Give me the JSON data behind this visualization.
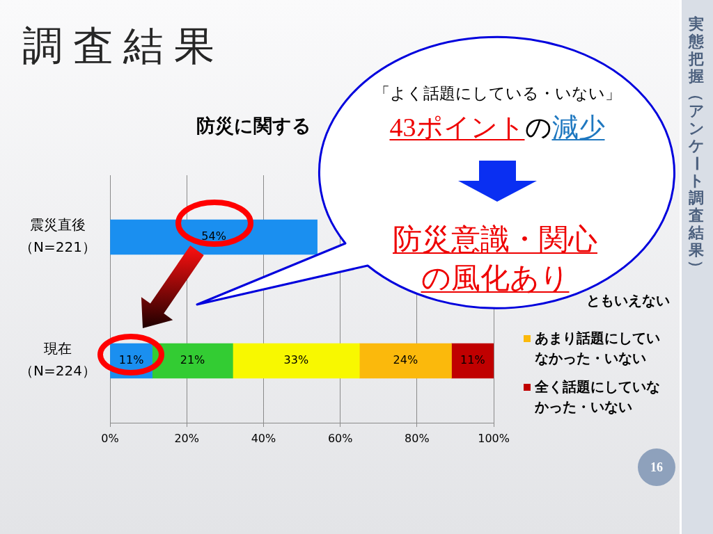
{
  "chart_data": {
    "type": "bar",
    "orientation": "horizontal",
    "stacked": true,
    "title": "調 査 結 果",
    "subtitle": "防災に関する",
    "categories": [
      "震災直後（N=221）",
      "現在（N=224）"
    ],
    "series": [
      {
        "color": "#1a8ff0",
        "values": [
          54,
          11
        ],
        "value_labels": [
          "54%",
          "11%"
        ]
      },
      {
        "color": "#33cc33",
        "values": [
          null,
          21
        ],
        "value_labels": [
          null,
          "21%"
        ]
      },
      {
        "color": "#f8f800",
        "values": [
          null,
          33
        ],
        "value_labels": [
          null,
          "33%"
        ]
      },
      {
        "name": "あまり話題にしていなかった・いない",
        "color": "#fbb90c",
        "values": [
          null,
          24
        ],
        "value_labels": [
          null,
          "24%"
        ]
      },
      {
        "name": "全く話題にしていなかった・いない",
        "color": "#c00000",
        "values": [
          null,
          11
        ],
        "value_labels": [
          null,
          "11%"
        ]
      }
    ],
    "xlim": [
      0,
      100
    ],
    "xticks": [
      {
        "value": 0,
        "label": "0%"
      },
      {
        "value": 20,
        "label": "20%"
      },
      {
        "value": 40,
        "label": "40%"
      },
      {
        "value": 60,
        "label": "60%"
      },
      {
        "value": 80,
        "label": "80%"
      },
      {
        "value": 100,
        "label": "100%"
      }
    ],
    "grid": "x",
    "legend": "right",
    "annotations": [
      "「よく話題にしている・いない」",
      "43ポイント",
      "の",
      "減少",
      "防災意識・関心の風化あり",
      "ともいえない",
      "実態把握（アンケート調査結果）",
      "16"
    ]
  }
}
